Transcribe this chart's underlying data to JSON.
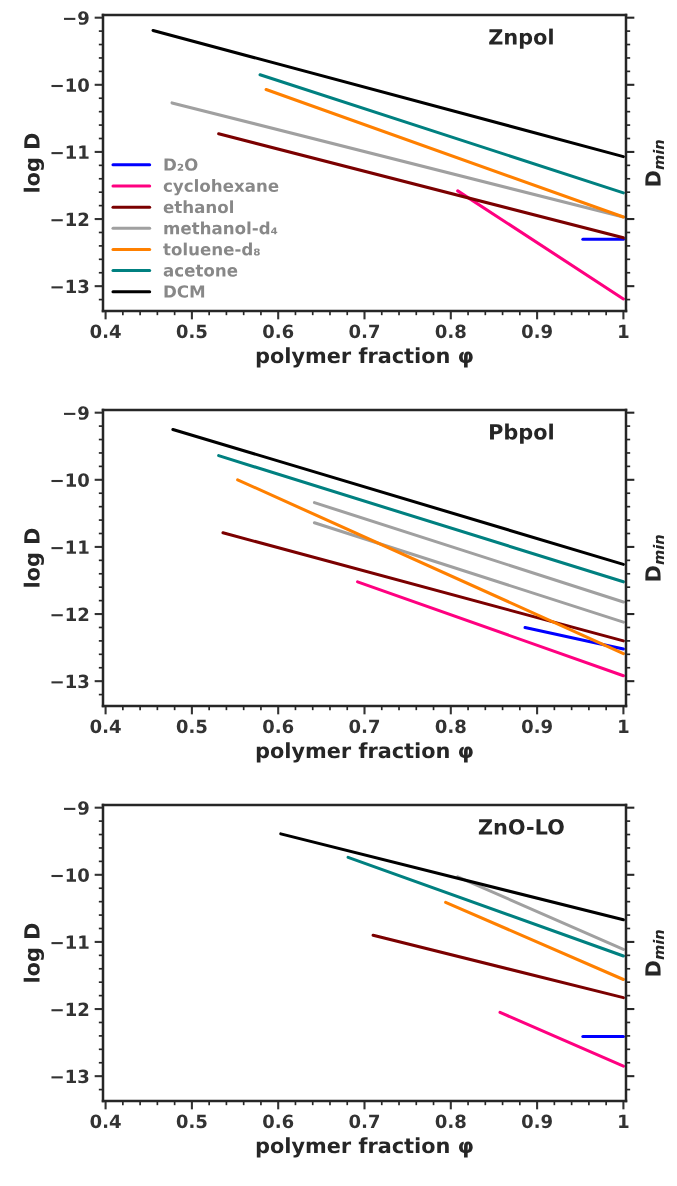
{
  "chart_data": [
    {
      "type": "line",
      "title": "Znpol",
      "xlabel": "polymer fraction φ",
      "ylabel": "log D",
      "y2label": "D$_{min}$",
      "xlim": [
        0.397,
        1.003
      ],
      "ylim": [
        -13.37,
        -8.96
      ],
      "xticks": [
        0.4,
        0.5,
        0.6,
        0.7,
        0.8,
        0.9,
        1
      ],
      "yticks": [
        {
          "value": -9,
          "label": "−9"
        },
        {
          "value": -10,
          "label": "−10"
        },
        {
          "value": -11,
          "label": "−11"
        },
        {
          "value": -12,
          "label": "−12"
        },
        {
          "value": -13,
          "label": "−13"
        }
      ],
      "grid": false,
      "legend": "bottom left",
      "series": [
        {
          "name": "D₂O",
          "color": "#0000ff",
          "x": [
            0.953,
            1.0
          ],
          "values": [
            -12.3,
            -12.3
          ]
        },
        {
          "name": "cyclohexane",
          "color": "#ff0080",
          "x": [
            0.808,
            1.0
          ],
          "values": [
            -11.58,
            -13.19
          ]
        },
        {
          "name": "ethanol",
          "color": "#7b0000",
          "x": [
            0.531,
            1.0
          ],
          "values": [
            -10.73,
            -12.28
          ]
        },
        {
          "name": "methanol-d₄",
          "color": "#a0a0a0",
          "x": [
            0.477,
            1.0
          ],
          "values": [
            -10.27,
            -11.97
          ]
        },
        {
          "name": "toluene-d₈",
          "color": "#ff8000",
          "x": [
            0.586,
            1.0
          ],
          "values": [
            -10.07,
            -11.97
          ]
        },
        {
          "name": "acetone",
          "color": "#008080",
          "x": [
            0.579,
            1.0
          ],
          "values": [
            -9.85,
            -11.61
          ]
        },
        {
          "name": "DCM",
          "color": "#000000",
          "x": [
            0.455,
            1.0
          ],
          "values": [
            -9.19,
            -11.07
          ]
        }
      ]
    },
    {
      "type": "line",
      "title": "Pbpol",
      "xlabel": "polymer fraction φ",
      "ylabel": "log D",
      "y2label": "D$_{min}$",
      "xlim": [
        0.397,
        1.003
      ],
      "ylim": [
        -13.37,
        -8.96
      ],
      "xticks": [
        0.4,
        0.5,
        0.6,
        0.7,
        0.8,
        0.9,
        1
      ],
      "yticks": [
        {
          "value": -9,
          "label": "−9"
        },
        {
          "value": -10,
          "label": "−10"
        },
        {
          "value": -11,
          "label": "−11"
        },
        {
          "value": -12,
          "label": "−12"
        },
        {
          "value": -13,
          "label": "−13"
        }
      ],
      "grid": false,
      "series": [
        {
          "color": "#0000ff",
          "x": [
            0.886,
            1.0
          ],
          "values": [
            -12.2,
            -12.52
          ]
        },
        {
          "color": "#ff0080",
          "x": [
            0.692,
            1.0
          ],
          "values": [
            -11.52,
            -12.92
          ]
        },
        {
          "color": "#7b0000",
          "x": [
            0.536,
            1.0
          ],
          "values": [
            -10.79,
            -12.4
          ]
        },
        {
          "color": "#a0a0a0",
          "x": [
            0.642,
            1.0
          ],
          "values": [
            -10.34,
            -11.82
          ]
        },
        {
          "color": "#a0a0a0",
          "x": [
            0.642,
            1.0
          ],
          "values": [
            -10.64,
            -12.12
          ]
        },
        {
          "color": "#ff8000",
          "x": [
            0.553,
            1.0
          ],
          "values": [
            -10.0,
            -12.59
          ]
        },
        {
          "color": "#008080",
          "x": [
            0.531,
            1.0
          ],
          "values": [
            -9.64,
            -11.52
          ]
        },
        {
          "color": "#000000",
          "x": [
            0.478,
            1.0
          ],
          "values": [
            -9.25,
            -11.26
          ]
        }
      ]
    },
    {
      "type": "line",
      "title": "ZnO-LO",
      "xlabel": "polymer fraction φ",
      "ylabel": "log D",
      "y2label": "D$_{min}$",
      "xlim": [
        0.397,
        1.003
      ],
      "ylim": [
        -13.37,
        -8.96
      ],
      "xticks": [
        0.4,
        0.5,
        0.6,
        0.7,
        0.8,
        0.9,
        1
      ],
      "yticks": [
        {
          "value": -9,
          "label": "−9"
        },
        {
          "value": -10,
          "label": "−10"
        },
        {
          "value": -11,
          "label": "−11"
        },
        {
          "value": -12,
          "label": "−12"
        },
        {
          "value": -13,
          "label": "−13"
        }
      ],
      "grid": false,
      "series": [
        {
          "color": "#0000ff",
          "x": [
            0.953,
            1.0
          ],
          "values": [
            -12.41,
            -12.41
          ]
        },
        {
          "color": "#ff0080",
          "x": [
            0.857,
            1.0
          ],
          "values": [
            -12.05,
            -12.85
          ]
        },
        {
          "color": "#7b0000",
          "x": [
            0.71,
            1.0
          ],
          "values": [
            -10.9,
            -11.83
          ]
        },
        {
          "color": "#a0a0a0",
          "x": [
            0.808,
            1.0
          ],
          "values": [
            -10.03,
            -11.11
          ]
        },
        {
          "color": "#ff8000",
          "x": [
            0.794,
            1.0
          ],
          "values": [
            -10.41,
            -11.56
          ]
        },
        {
          "color": "#008080",
          "x": [
            0.681,
            1.0
          ],
          "values": [
            -9.74,
            -11.21
          ]
        },
        {
          "color": "#000000",
          "x": [
            0.603,
            1.0
          ],
          "values": [
            -9.39,
            -10.67
          ]
        }
      ]
    }
  ]
}
